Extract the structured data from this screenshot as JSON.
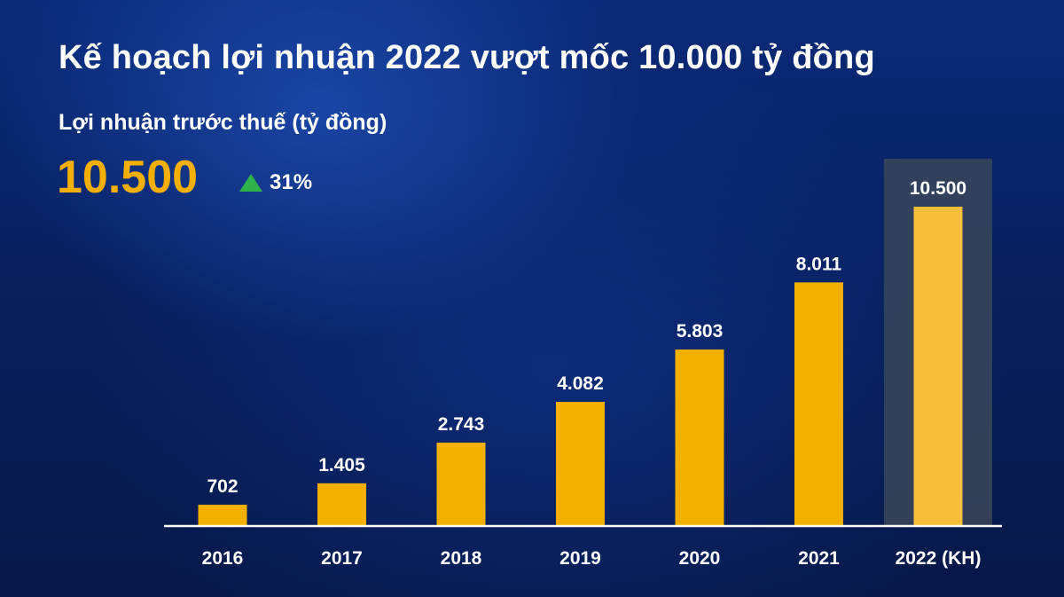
{
  "title": "Kế hoạch lợi nhuận 2022 vượt mốc 10.000 tỷ đồng",
  "subtitle": "Lợi nhuận trước thuế (tỷ đồng)",
  "headline_value": "10.500",
  "growth": {
    "icon": "triangle-up-icon",
    "text": "31%",
    "color": "#2fb24a"
  },
  "colors": {
    "bar": "#f3b000",
    "highlight_bar": "#f5bf3c",
    "highlight_panel": "#3a4659",
    "axis": "#ffffff",
    "headline": "#f3b000"
  },
  "chart_data": {
    "type": "bar",
    "title": "Lợi nhuận trước thuế (tỷ đồng)",
    "categories": [
      "2016",
      "2017",
      "2018",
      "2019",
      "2020",
      "2021",
      "2022 (KH)"
    ],
    "values": [
      702,
      1405,
      2743,
      4082,
      5803,
      8011,
      10500
    ],
    "value_labels": [
      "702",
      "1.405",
      "2.743",
      "4.082",
      "5.803",
      "8.011",
      "10.500"
    ],
    "highlight_index": 6,
    "xlabel": "",
    "ylabel": "",
    "ylim": [
      0,
      10500
    ],
    "grid": false,
    "legend": "none"
  }
}
